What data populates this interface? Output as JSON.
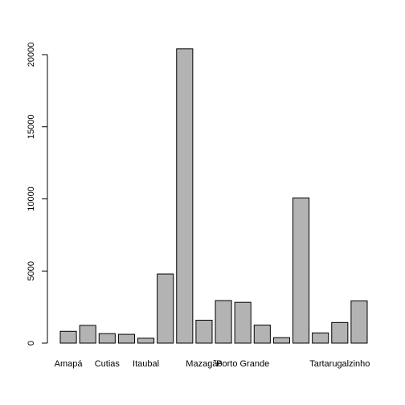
{
  "chart_data": {
    "type": "bar",
    "title": "",
    "xlabel": "",
    "ylabel": "",
    "ylim": [
      0,
      20500
    ],
    "yticks": [
      0,
      5000,
      10000,
      15000,
      20000
    ],
    "grid": false,
    "legend": "none",
    "categories": [
      "Amapá",
      "",
      "Cutias",
      "",
      "Itaubal",
      "",
      "",
      "Mazagão",
      "",
      "Porto Grande",
      "",
      "",
      "",
      "",
      "Tartarugalzinho",
      ""
    ],
    "values": [
      820,
      1230,
      660,
      610,
      340,
      4790,
      20400,
      1590,
      2950,
      2830,
      1250,
      380,
      10070,
      710,
      1430,
      2930
    ],
    "bar_color": "#b3b3b3",
    "bar_stroke": "#000000"
  }
}
